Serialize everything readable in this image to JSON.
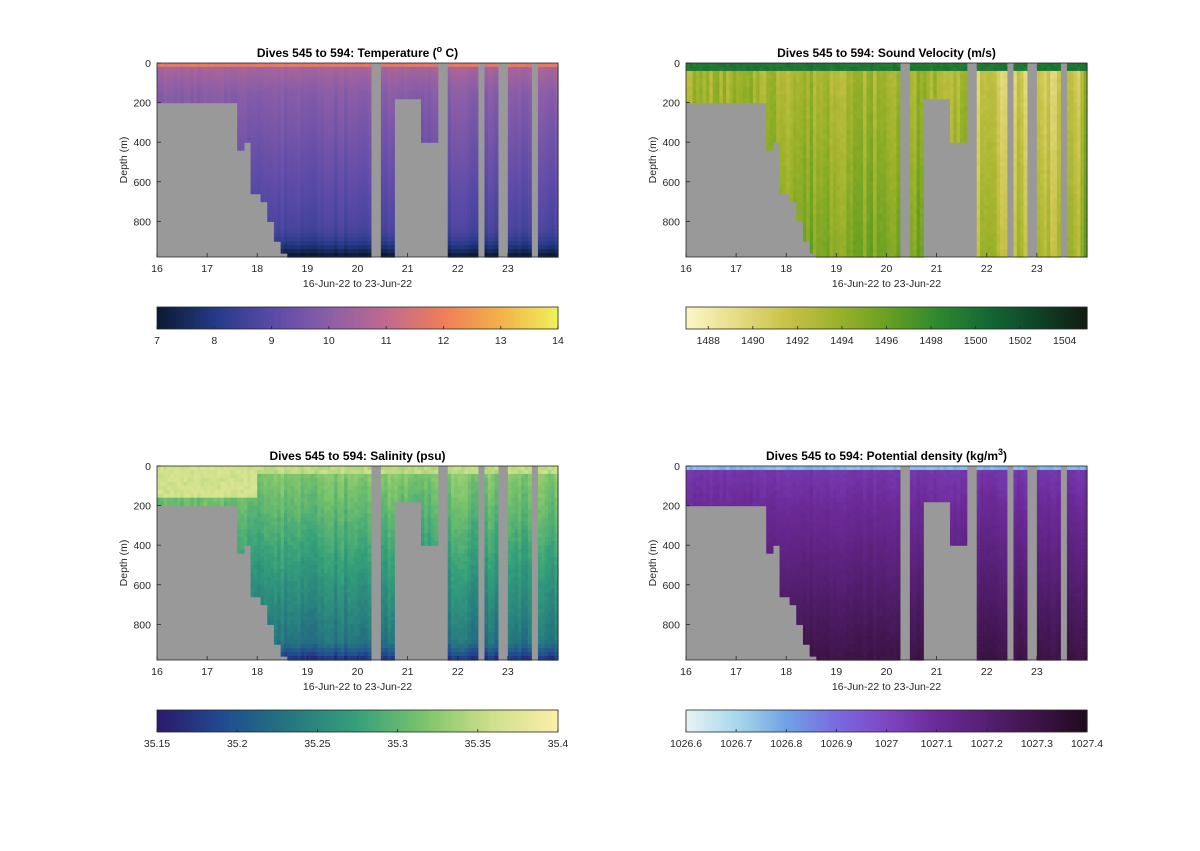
{
  "figure": {
    "xlabel": "16-Jun-22 to 23-Jun-22",
    "ylabel": "Depth (m)",
    "missing_color": "#999999"
  },
  "chart_data": [
    {
      "type": "heatmap",
      "title": "Dives 545 to 594: Temperature (",
      "title_sup": "o",
      "title_suffix": " C)",
      "variable": "temperature",
      "xlabel": "16-Jun-22 to 23-Jun-22",
      "ylabel": "Depth (m)",
      "xlim": [
        16,
        24
      ],
      "ylim": [
        0,
        980
      ],
      "y_reversed": true,
      "x_ticks": [
        "16",
        "17",
        "18",
        "19",
        "20",
        "21",
        "22",
        "23"
      ],
      "y_ticks": [
        "0",
        "200",
        "400",
        "600",
        "800"
      ],
      "colorbar": {
        "ticks": [
          "7",
          "8",
          "9",
          "10",
          "11",
          "12",
          "13",
          "14"
        ],
        "range": [
          7,
          14
        ],
        "colors": [
          "#0b1b33",
          "#243a87",
          "#5a4aa8",
          "#8b5ea8",
          "#c06a8e",
          "#ef7d5a",
          "#f4b04a",
          "#f0f05a"
        ]
      }
    },
    {
      "type": "heatmap",
      "title": "Dives 545 to 594: Sound Velocity (m/s)",
      "title_sup": "",
      "title_suffix": "",
      "variable": "sound_velocity",
      "xlabel": "16-Jun-22 to 23-Jun-22",
      "ylabel": "Depth (m)",
      "xlim": [
        16,
        24
      ],
      "ylim": [
        0,
        980
      ],
      "y_reversed": true,
      "x_ticks": [
        "16",
        "17",
        "18",
        "19",
        "20",
        "21",
        "22",
        "23"
      ],
      "y_ticks": [
        "0",
        "200",
        "400",
        "600",
        "800"
      ],
      "colorbar": {
        "ticks": [
          "1488",
          "1490",
          "1492",
          "1494",
          "1496",
          "1498",
          "1500",
          "1502",
          "1504"
        ],
        "range": [
          1487,
          1505
        ],
        "colors": [
          "#fbf6c8",
          "#e6dc84",
          "#c8c248",
          "#9cb22a",
          "#6aa022",
          "#2f8a2e",
          "#136a34",
          "#0f4528",
          "#121d12"
        ]
      }
    },
    {
      "type": "heatmap",
      "title": "Dives 545 to 594: Salinity (psu)",
      "title_sup": "",
      "title_suffix": "",
      "variable": "salinity",
      "xlabel": "16-Jun-22 to 23-Jun-22",
      "ylabel": "Depth (m)",
      "xlim": [
        16,
        24
      ],
      "ylim": [
        0,
        980
      ],
      "y_reversed": true,
      "x_ticks": [
        "16",
        "17",
        "18",
        "19",
        "20",
        "21",
        "22",
        "23"
      ],
      "y_ticks": [
        "0",
        "200",
        "400",
        "600",
        "800"
      ],
      "colorbar": {
        "ticks": [
          "35.15",
          "35.2",
          "35.25",
          "35.3",
          "35.35",
          "35.4"
        ],
        "range": [
          35.15,
          35.4
        ],
        "colors": [
          "#2a1a6e",
          "#1f4d8f",
          "#26787f",
          "#35a07a",
          "#7cc46a",
          "#cde08a",
          "#fbefa6"
        ]
      }
    },
    {
      "type": "heatmap",
      "title": "Dives 545 to 594: Potential density (kg/m",
      "title_sup": "3",
      "title_suffix": ")",
      "variable": "potential_density",
      "xlabel": "16-Jun-22 to 23-Jun-22",
      "ylabel": "Depth (m)",
      "xlim": [
        16,
        24
      ],
      "ylim": [
        0,
        980
      ],
      "y_reversed": true,
      "x_ticks": [
        "16",
        "17",
        "18",
        "19",
        "20",
        "21",
        "22",
        "23"
      ],
      "y_ticks": [
        "0",
        "200",
        "400",
        "600",
        "800"
      ],
      "colorbar": {
        "ticks": [
          "1026.6",
          "1026.7",
          "1026.8",
          "1026.9",
          "1027",
          "1027.1",
          "1027.2",
          "1027.3",
          "1027.4"
        ],
        "range": [
          1026.6,
          1027.4
        ],
        "colors": [
          "#e6f3f4",
          "#a8d8ea",
          "#6fa2e4",
          "#7a6ae0",
          "#7d47c2",
          "#6c2a98",
          "#551f72",
          "#3d1448",
          "#200a1e"
        ]
      }
    }
  ]
}
